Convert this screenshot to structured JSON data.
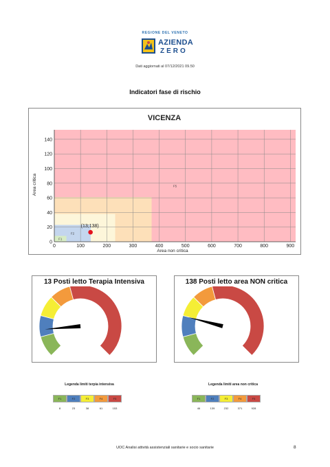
{
  "logo": {
    "region": "REGIONE DEL VENETO",
    "line1": "AZIENDA",
    "line2": "ZERO"
  },
  "updated": "Dati aggiornati al 07/12/2021 09.50",
  "section_title": "Indicatori fase di rischio",
  "colors": {
    "f1": "#8ab659",
    "f2": "#4f7fbd",
    "f3": "#f5ee35",
    "f4": "#f39a3c",
    "f5": "#c94944",
    "zone_f1": "#d7ecc4",
    "zone_f2": "#c4d6ee",
    "zone_f3": "#fdf6da",
    "zone_f4": "#fde0b9",
    "zone_f5": "#ffbcc2"
  },
  "chart_data": [
    {
      "type": "scatter",
      "title": "VICENZA",
      "xlabel": "Area non critica",
      "ylabel": "Area critica",
      "xlim": [
        0,
        920
      ],
      "ylim": [
        0,
        153
      ],
      "xticks": [
        0,
        100,
        200,
        300,
        400,
        500,
        600,
        700,
        800,
        900
      ],
      "yticks": [
        0,
        20,
        40,
        60,
        80,
        100,
        120,
        140
      ],
      "grid": true,
      "zones": [
        {
          "name": "F5",
          "x": [
            0,
            928
          ],
          "y": [
            0,
            153
          ]
        },
        {
          "name": "F4",
          "x": [
            0,
            371
          ],
          "y": [
            0,
            61
          ]
        },
        {
          "name": "F3",
          "x": [
            0,
            232
          ],
          "y": [
            0,
            38
          ]
        },
        {
          "name": "F2",
          "x": [
            0,
            139
          ],
          "y": [
            0,
            23
          ]
        },
        {
          "name": "F1",
          "x": [
            0,
            46
          ],
          "y": [
            0,
            8
          ]
        }
      ],
      "points": [
        {
          "x": 138,
          "y": 13,
          "label": "(13;138)"
        }
      ]
    },
    {
      "type": "gauge",
      "title": "13 Posti letto Terapia Intensiva",
      "value": 13,
      "bands": [
        {
          "name": "F1",
          "from": 0,
          "to": 8
        },
        {
          "name": "F2",
          "from": 8,
          "to": 23
        },
        {
          "name": "F3",
          "from": 23,
          "to": 38
        },
        {
          "name": "F4",
          "from": 38,
          "to": 61
        },
        {
          "name": "F5",
          "from": 61,
          "to": 153
        }
      ]
    },
    {
      "type": "gauge",
      "title": "138 Posti letto area NON critica",
      "value": 138,
      "bands": [
        {
          "name": "F1",
          "from": 0,
          "to": 46
        },
        {
          "name": "F2",
          "from": 46,
          "to": 139
        },
        {
          "name": "F3",
          "from": 139,
          "to": 232
        },
        {
          "name": "F4",
          "from": 232,
          "to": 371
        },
        {
          "name": "F5",
          "from": 371,
          "to": 928
        }
      ]
    }
  ],
  "legend_ti": {
    "title": "Legenda limiti terpia intensiva",
    "labels": [
      "F1",
      "F2",
      "F3",
      "F4",
      "F5"
    ],
    "values": [
      "8",
      "23",
      "38",
      "61",
      "153"
    ]
  },
  "legend_nc": {
    "title": "Legenda limiti area non critica",
    "labels": [
      "F1",
      "F2",
      "F3",
      "F4",
      "F5"
    ],
    "values": [
      "46",
      "139",
      "232",
      "371",
      "928"
    ]
  },
  "footer": "UOC Analisi attività assistenziali sanitarie e socio sanitarie",
  "page_number": "8"
}
